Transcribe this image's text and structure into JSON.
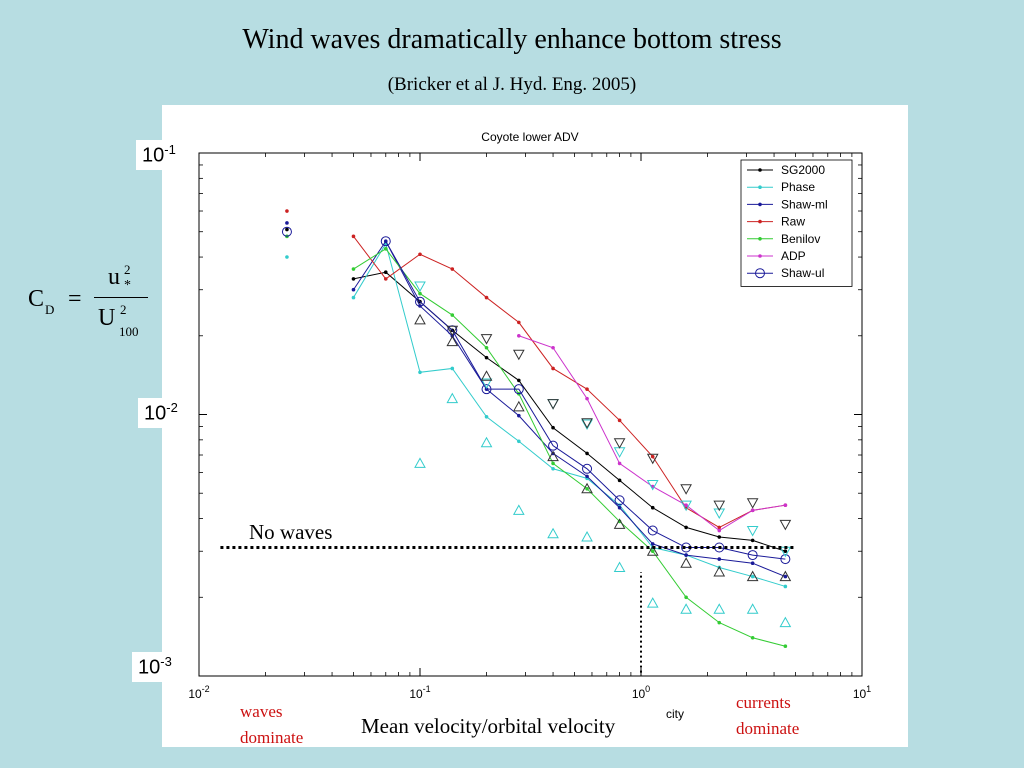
{
  "slide": {
    "title": "Wind waves dramatically enhance bottom stress",
    "subtitle": "(Bricker et al J. Hyd. Eng. 2005)",
    "ylabels": {
      "top": {
        "base": "10",
        "exp": "-1"
      },
      "mid": {
        "base": "10",
        "exp": "-2"
      },
      "bot": {
        "base": "10",
        "exp": "-3"
      }
    },
    "equation": {
      "lhs": "C",
      "lhs_sub": "D",
      "eq": "=",
      "num": "u",
      "num_sup": "2",
      "num_sub": "*",
      "den": "U",
      "den_sup": "2",
      "den_sub": "100"
    },
    "annotations": {
      "no_waves": "No waves",
      "waves_line1": "waves",
      "waves_line2": "dominate",
      "currents_line1": "currents",
      "currents_line2": "dominate",
      "xlabel": "Mean velocity/orbital velocity"
    },
    "colors": {
      "background": "#b7dde2",
      "annotation_red": "#cc1111"
    }
  },
  "chart_data": {
    "type": "line",
    "title": "Coyote lower ADV",
    "x_scale": "log",
    "y_scale": "log",
    "xlim": [
      0.01,
      10
    ],
    "ylim": [
      0.001,
      0.1
    ],
    "x_ticks": [
      {
        "value": 0.01,
        "base": "10",
        "exp": "-2"
      },
      {
        "value": 0.1,
        "base": "10",
        "exp": "-1"
      },
      {
        "value": 1,
        "base": "10",
        "exp": "0"
      },
      {
        "value": 10,
        "base": "10",
        "exp": "1"
      }
    ],
    "x_partial_label": "city",
    "legend_position": "top-right",
    "series": [
      {
        "name": "SG2000",
        "color": "#000000",
        "marker": "dot",
        "x": [
          0.025,
          0.05,
          0.07,
          0.1,
          0.14,
          0.2,
          0.28,
          0.4,
          0.57,
          0.8,
          1.13,
          1.6,
          2.26,
          3.2,
          4.5
        ],
        "y": [
          0.051,
          0.033,
          0.035,
          0.027,
          0.021,
          0.0165,
          0.0135,
          0.0089,
          0.0071,
          0.0056,
          0.0044,
          0.0037,
          0.0034,
          0.0033,
          0.003
        ]
      },
      {
        "name": "Phase",
        "color": "#33cccc",
        "marker": "dot",
        "x": [
          0.025,
          0.05,
          0.07,
          0.1,
          0.14,
          0.2,
          0.28,
          0.4,
          0.57,
          0.8,
          1.13,
          1.6,
          2.26,
          3.2,
          4.5
        ],
        "y": [
          0.04,
          0.028,
          0.045,
          0.0145,
          0.015,
          0.0098,
          0.0079,
          0.0062,
          0.0057,
          0.0045,
          0.0031,
          0.0029,
          0.0026,
          0.0024,
          0.0022
        ]
      },
      {
        "name": "Shaw-ml",
        "color": "#1a1a99",
        "marker": "dot",
        "x": [
          0.025,
          0.05,
          0.07,
          0.1,
          0.14,
          0.2,
          0.28,
          0.4,
          0.57,
          0.8,
          1.13,
          1.6,
          2.26,
          3.2,
          4.5
        ],
        "y": [
          0.054,
          0.03,
          0.046,
          0.026,
          0.02,
          0.0125,
          0.0099,
          0.0071,
          0.0058,
          0.0044,
          0.0032,
          0.0029,
          0.0028,
          0.0027,
          0.0024
        ]
      },
      {
        "name": "Raw",
        "color": "#cc2222",
        "marker": "dot",
        "x": [
          0.025,
          0.05,
          0.07,
          0.1,
          0.14,
          0.2,
          0.28,
          0.4,
          0.57,
          0.8,
          1.13,
          1.6,
          2.26,
          3.2,
          4.5
        ],
        "y": [
          0.06,
          0.048,
          0.033,
          0.041,
          0.036,
          0.028,
          0.0225,
          0.015,
          0.0125,
          0.0095,
          0.0069,
          0.0044,
          0.0037,
          0.0043,
          0.0045
        ]
      },
      {
        "name": "Benilov",
        "color": "#33cc33",
        "marker": "dot",
        "x": [
          0.025,
          0.05,
          0.07,
          0.1,
          0.14,
          0.2,
          0.28,
          0.4,
          0.57,
          0.8,
          1.13,
          1.6,
          2.26,
          3.2,
          4.5
        ],
        "y": [
          0.048,
          0.036,
          0.043,
          0.029,
          0.024,
          0.018,
          0.012,
          0.0065,
          0.0052,
          0.0039,
          0.003,
          0.002,
          0.0016,
          0.0014,
          0.0013
        ]
      },
      {
        "name": "ADP",
        "color": "#cc33cc",
        "marker": "dot",
        "x": [
          0.28,
          0.4,
          0.57,
          0.8,
          1.13,
          1.6,
          2.26,
          3.2,
          4.5
        ],
        "y": [
          0.02,
          0.018,
          0.0115,
          0.0065,
          0.0053,
          0.0045,
          0.0036,
          0.0043,
          0.0045
        ]
      },
      {
        "name": "Shaw-ul",
        "color": "#1a1a99",
        "marker": "circle",
        "x": [
          0.025,
          0.07,
          0.1,
          0.14,
          0.2,
          0.28,
          0.4,
          0.57,
          0.8,
          1.13,
          1.6,
          2.26,
          3.2,
          4.5
        ],
        "y": [
          0.05,
          0.046,
          0.027,
          0.021,
          0.0125,
          0.0125,
          0.0076,
          0.0062,
          0.0047,
          0.0036,
          0.0031,
          0.0031,
          0.0029,
          0.0028
        ]
      }
    ],
    "extra_markers": [
      {
        "shape": "tri-down",
        "color": "#33cccc",
        "points": [
          [
            0.1,
            0.031
          ],
          [
            0.2,
            0.0132
          ],
          [
            0.4,
            0.011
          ],
          [
            0.57,
            0.0092
          ],
          [
            0.8,
            0.0072
          ],
          [
            1.13,
            0.0054
          ],
          [
            1.6,
            0.0045
          ],
          [
            2.26,
            0.0042
          ],
          [
            3.2,
            0.0036
          ],
          [
            4.5,
            0.003
          ]
        ]
      },
      {
        "shape": "tri-down",
        "color": "#333333",
        "points": [
          [
            0.14,
            0.021
          ],
          [
            0.2,
            0.0195
          ],
          [
            0.28,
            0.017
          ],
          [
            0.4,
            0.011
          ],
          [
            0.57,
            0.0093
          ],
          [
            0.8,
            0.0078
          ],
          [
            1.13,
            0.0068
          ],
          [
            1.6,
            0.0052
          ],
          [
            2.26,
            0.0045
          ],
          [
            3.2,
            0.0046
          ],
          [
            4.5,
            0.0038
          ]
        ]
      },
      {
        "shape": "tri-up",
        "color": "#33cccc",
        "points": [
          [
            0.1,
            0.0065
          ],
          [
            0.14,
            0.0115
          ],
          [
            0.2,
            0.0078
          ],
          [
            0.28,
            0.0043
          ],
          [
            0.4,
            0.0035
          ],
          [
            0.57,
            0.0034
          ],
          [
            0.8,
            0.0026
          ],
          [
            1.13,
            0.0019
          ],
          [
            1.6,
            0.0018
          ],
          [
            2.26,
            0.0018
          ],
          [
            3.2,
            0.0018
          ],
          [
            4.5,
            0.0016
          ]
        ]
      },
      {
        "shape": "tri-up",
        "color": "#333333",
        "points": [
          [
            0.1,
            0.023
          ],
          [
            0.14,
            0.019
          ],
          [
            0.2,
            0.014
          ],
          [
            0.28,
            0.0107
          ],
          [
            0.4,
            0.0069
          ],
          [
            0.57,
            0.0052
          ],
          [
            0.8,
            0.0038
          ],
          [
            1.13,
            0.003
          ],
          [
            1.6,
            0.0027
          ],
          [
            2.26,
            0.0025
          ],
          [
            3.2,
            0.0024
          ],
          [
            4.5,
            0.0024
          ]
        ]
      }
    ],
    "reference_lines": [
      {
        "orientation": "horizontal",
        "y": 0.0031,
        "x_from": 0.0125,
        "x_to": 4.5,
        "style": "dotted"
      },
      {
        "orientation": "vertical",
        "x": 1,
        "y_from": 0.00103,
        "y_to": 0.0025,
        "style": "dotted"
      }
    ]
  }
}
